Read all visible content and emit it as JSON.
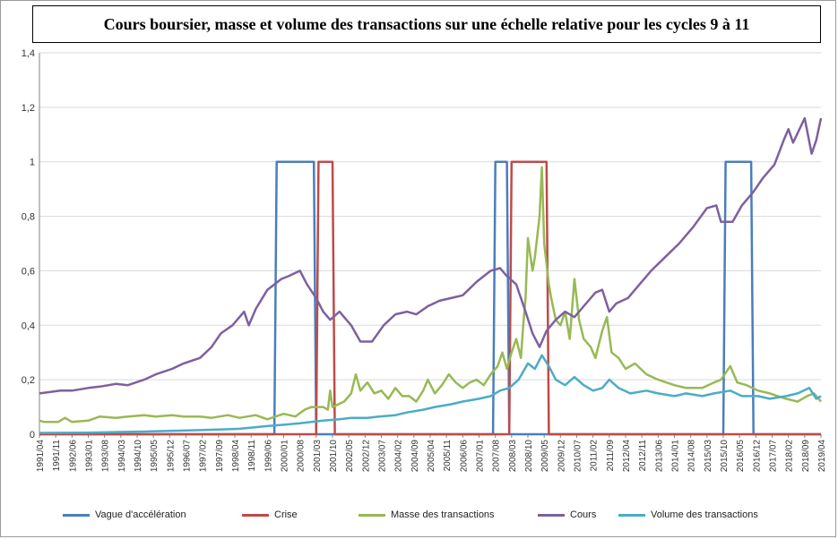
{
  "chart_data": {
    "type": "line",
    "title": "Cours boursier, masse et volume des transactions sur une échelle relative pour les cycles 9 à 11",
    "xlabel": "",
    "ylabel": "",
    "ylim": [
      0,
      1.4
    ],
    "yticks": [
      "0",
      "0,2",
      "0,4",
      "0,6",
      "0,8",
      "1",
      "1,2",
      "1,4"
    ],
    "x_start": "1991/04",
    "x_end": "2019/04",
    "x_tick_labels": [
      "1991/04",
      "1991/11",
      "1992/06",
      "1993/01",
      "1993/08",
      "1994/03",
      "1994/10",
      "1995/05",
      "1995/12",
      "1996/07",
      "1997/02",
      "1997/09",
      "1998/04",
      "1998/11",
      "1999/06",
      "2000/01",
      "2000/08",
      "2001/03",
      "2001/10",
      "2002/05",
      "2002/12",
      "2003/07",
      "2004/02",
      "2004/09",
      "2005/04",
      "2005/11",
      "2006/06",
      "2007/01",
      "2007/08",
      "2008/03",
      "2008/10",
      "2009/05",
      "2009/12",
      "2010/07",
      "2011/02",
      "2011/09",
      "2012/04",
      "2012/11",
      "2013/06",
      "2014/01",
      "2014/08",
      "2015/03",
      "2015/10",
      "2016/05",
      "2016/12",
      "2017/07",
      "2018/02",
      "2018/09",
      "2019/04"
    ],
    "legend_position": "bottom",
    "grid": "horizontal",
    "series": [
      {
        "name": "Vague d'accélération",
        "color": "#4a7ebb",
        "points": [
          [
            "1991/04",
            0
          ],
          [
            "1999/09",
            0
          ],
          [
            "1999/10",
            1
          ],
          [
            "2001/02",
            1
          ],
          [
            "2001/03",
            0
          ],
          [
            "2007/07",
            0
          ],
          [
            "2007/08",
            1
          ],
          [
            "2008/01",
            1
          ],
          [
            "2008/02",
            0
          ],
          [
            "2015/10",
            0
          ],
          [
            "2015/11",
            1
          ],
          [
            "2016/10",
            1
          ],
          [
            "2016/11",
            0
          ],
          [
            "2019/04",
            0
          ]
        ]
      },
      {
        "name": "Crise",
        "color": "#be4b48",
        "points": [
          [
            "1991/04",
            0
          ],
          [
            "2001/03",
            0
          ],
          [
            "2001/04",
            1
          ],
          [
            "2001/10",
            1
          ],
          [
            "2001/11",
            0
          ],
          [
            "2008/02",
            0
          ],
          [
            "2008/03",
            1
          ],
          [
            "2009/06",
            1
          ],
          [
            "2009/07",
            0
          ],
          [
            "2019/04",
            0
          ]
        ]
      },
      {
        "name": "Masse des transactions",
        "color": "#98b954",
        "points": [
          [
            "1991/04",
            0.05
          ],
          [
            "1991/06",
            0.045
          ],
          [
            "1991/12",
            0.045
          ],
          [
            "1992/03",
            0.06
          ],
          [
            "1992/06",
            0.045
          ],
          [
            "1993/01",
            0.05
          ],
          [
            "1993/06",
            0.065
          ],
          [
            "1994/01",
            0.06
          ],
          [
            "1994/06",
            0.065
          ],
          [
            "1995/01",
            0.07
          ],
          [
            "1995/06",
            0.065
          ],
          [
            "1996/01",
            0.07
          ],
          [
            "1996/06",
            0.065
          ],
          [
            "1997/01",
            0.065
          ],
          [
            "1997/06",
            0.06
          ],
          [
            "1998/01",
            0.07
          ],
          [
            "1998/06",
            0.06
          ],
          [
            "1999/01",
            0.07
          ],
          [
            "1999/06",
            0.055
          ],
          [
            "2000/01",
            0.075
          ],
          [
            "2000/06",
            0.065
          ],
          [
            "2000/10",
            0.09
          ],
          [
            "2001/01",
            0.1
          ],
          [
            "2001/06",
            0.1
          ],
          [
            "2001/08",
            0.09
          ],
          [
            "2001/09",
            0.16
          ],
          [
            "2001/10",
            0.1
          ],
          [
            "2002/03",
            0.12
          ],
          [
            "2002/06",
            0.15
          ],
          [
            "2002/08",
            0.22
          ],
          [
            "2002/10",
            0.16
          ],
          [
            "2003/01",
            0.19
          ],
          [
            "2003/04",
            0.15
          ],
          [
            "2003/07",
            0.16
          ],
          [
            "2003/10",
            0.13
          ],
          [
            "2004/01",
            0.17
          ],
          [
            "2004/04",
            0.14
          ],
          [
            "2004/07",
            0.14
          ],
          [
            "2004/10",
            0.12
          ],
          [
            "2005/01",
            0.16
          ],
          [
            "2005/03",
            0.2
          ],
          [
            "2005/06",
            0.15
          ],
          [
            "2005/09",
            0.18
          ],
          [
            "2005/12",
            0.22
          ],
          [
            "2006/03",
            0.19
          ],
          [
            "2006/06",
            0.17
          ],
          [
            "2006/09",
            0.19
          ],
          [
            "2006/12",
            0.2
          ],
          [
            "2007/03",
            0.18
          ],
          [
            "2007/06",
            0.22
          ],
          [
            "2007/09",
            0.25
          ],
          [
            "2007/11",
            0.3
          ],
          [
            "2008/01",
            0.24
          ],
          [
            "2008/03",
            0.3
          ],
          [
            "2008/05",
            0.35
          ],
          [
            "2008/07",
            0.28
          ],
          [
            "2008/08",
            0.4
          ],
          [
            "2008/09",
            0.5
          ],
          [
            "2008/10",
            0.72
          ],
          [
            "2008/12",
            0.6
          ],
          [
            "2009/01",
            0.65
          ],
          [
            "2009/03",
            0.8
          ],
          [
            "2009/04",
            0.98
          ],
          [
            "2009/05",
            0.7
          ],
          [
            "2009/07",
            0.55
          ],
          [
            "2009/08",
            0.5
          ],
          [
            "2009/10",
            0.42
          ],
          [
            "2009/12",
            0.4
          ],
          [
            "2010/02",
            0.45
          ],
          [
            "2010/04",
            0.35
          ],
          [
            "2010/06",
            0.57
          ],
          [
            "2010/08",
            0.42
          ],
          [
            "2010/10",
            0.35
          ],
          [
            "2011/01",
            0.32
          ],
          [
            "2011/03",
            0.28
          ],
          [
            "2011/06",
            0.38
          ],
          [
            "2011/08",
            0.43
          ],
          [
            "2011/10",
            0.3
          ],
          [
            "2012/01",
            0.28
          ],
          [
            "2012/04",
            0.24
          ],
          [
            "2012/08",
            0.26
          ],
          [
            "2013/01",
            0.22
          ],
          [
            "2013/06",
            0.2
          ],
          [
            "2014/01",
            0.18
          ],
          [
            "2014/06",
            0.17
          ],
          [
            "2015/01",
            0.17
          ],
          [
            "2015/06",
            0.19
          ],
          [
            "2015/09",
            0.2
          ],
          [
            "2016/01",
            0.25
          ],
          [
            "2016/04",
            0.19
          ],
          [
            "2016/08",
            0.18
          ],
          [
            "2017/01",
            0.16
          ],
          [
            "2017/06",
            0.15
          ],
          [
            "2018/01",
            0.13
          ],
          [
            "2018/06",
            0.12
          ],
          [
            "2018/10",
            0.14
          ],
          [
            "2019/01",
            0.15
          ],
          [
            "2019/04",
            0.12
          ]
        ]
      },
      {
        "name": "Cours",
        "color": "#7d60a0",
        "points": [
          [
            "1991/04",
            0.15
          ],
          [
            "1992/01",
            0.16
          ],
          [
            "1992/06",
            0.16
          ],
          [
            "1993/01",
            0.17
          ],
          [
            "1993/06",
            0.175
          ],
          [
            "1994/01",
            0.185
          ],
          [
            "1994/06",
            0.18
          ],
          [
            "1995/01",
            0.2
          ],
          [
            "1995/06",
            0.22
          ],
          [
            "1996/01",
            0.24
          ],
          [
            "1996/06",
            0.26
          ],
          [
            "1997/01",
            0.28
          ],
          [
            "1997/06",
            0.32
          ],
          [
            "1997/10",
            0.37
          ],
          [
            "1998/03",
            0.4
          ],
          [
            "1998/08",
            0.45
          ],
          [
            "1998/10",
            0.4
          ],
          [
            "1999/01",
            0.46
          ],
          [
            "1999/06",
            0.53
          ],
          [
            "1999/12",
            0.57
          ],
          [
            "2000/03",
            0.58
          ],
          [
            "2000/08",
            0.6
          ],
          [
            "2000/11",
            0.55
          ],
          [
            "2001/03",
            0.5
          ],
          [
            "2001/06",
            0.45
          ],
          [
            "2001/09",
            0.42
          ],
          [
            "2002/01",
            0.45
          ],
          [
            "2002/06",
            0.4
          ],
          [
            "2002/10",
            0.34
          ],
          [
            "2003/03",
            0.34
          ],
          [
            "2003/08",
            0.4
          ],
          [
            "2004/01",
            0.44
          ],
          [
            "2004/06",
            0.45
          ],
          [
            "2004/10",
            0.44
          ],
          [
            "2005/03",
            0.47
          ],
          [
            "2005/08",
            0.49
          ],
          [
            "2006/01",
            0.5
          ],
          [
            "2006/06",
            0.51
          ],
          [
            "2006/12",
            0.56
          ],
          [
            "2007/06",
            0.6
          ],
          [
            "2007/10",
            0.61
          ],
          [
            "2008/01",
            0.58
          ],
          [
            "2008/05",
            0.55
          ],
          [
            "2008/09",
            0.45
          ],
          [
            "2008/12",
            0.37
          ],
          [
            "2009/03",
            0.32
          ],
          [
            "2009/06",
            0.38
          ],
          [
            "2009/10",
            0.42
          ],
          [
            "2010/02",
            0.45
          ],
          [
            "2010/06",
            0.43
          ],
          [
            "2010/10",
            0.47
          ],
          [
            "2011/03",
            0.52
          ],
          [
            "2011/06",
            0.53
          ],
          [
            "2011/09",
            0.45
          ],
          [
            "2011/12",
            0.48
          ],
          [
            "2012/05",
            0.5
          ],
          [
            "2012/10",
            0.55
          ],
          [
            "2013/03",
            0.6
          ],
          [
            "2013/09",
            0.65
          ],
          [
            "2014/03",
            0.7
          ],
          [
            "2014/09",
            0.76
          ],
          [
            "2015/03",
            0.83
          ],
          [
            "2015/07",
            0.84
          ],
          [
            "2015/09",
            0.78
          ],
          [
            "2016/02",
            0.78
          ],
          [
            "2016/06",
            0.84
          ],
          [
            "2016/11",
            0.89
          ],
          [
            "2017/03",
            0.94
          ],
          [
            "2017/08",
            0.99
          ],
          [
            "2017/12",
            1.08
          ],
          [
            "2018/02",
            1.12
          ],
          [
            "2018/04",
            1.07
          ],
          [
            "2018/09",
            1.16
          ],
          [
            "2018/12",
            1.03
          ],
          [
            "2019/02",
            1.08
          ],
          [
            "2019/04",
            1.16
          ]
        ]
      },
      {
        "name": "Volume des transactions",
        "color": "#4bacc6",
        "points": [
          [
            "1991/04",
            0.005
          ],
          [
            "1993/01",
            0.006
          ],
          [
            "1995/01",
            0.01
          ],
          [
            "1997/01",
            0.015
          ],
          [
            "1998/06",
            0.02
          ],
          [
            "1999/06",
            0.03
          ],
          [
            "2000/01",
            0.035
          ],
          [
            "2000/08",
            0.04
          ],
          [
            "2001/01",
            0.045
          ],
          [
            "2001/06",
            0.05
          ],
          [
            "2002/01",
            0.055
          ],
          [
            "2002/06",
            0.06
          ],
          [
            "2003/01",
            0.06
          ],
          [
            "2003/06",
            0.065
          ],
          [
            "2004/01",
            0.07
          ],
          [
            "2004/06",
            0.08
          ],
          [
            "2005/01",
            0.09
          ],
          [
            "2005/06",
            0.1
          ],
          [
            "2006/01",
            0.11
          ],
          [
            "2006/06",
            0.12
          ],
          [
            "2007/01",
            0.13
          ],
          [
            "2007/06",
            0.14
          ],
          [
            "2007/10",
            0.16
          ],
          [
            "2008/02",
            0.17
          ],
          [
            "2008/06",
            0.2
          ],
          [
            "2008/10",
            0.26
          ],
          [
            "2009/01",
            0.24
          ],
          [
            "2009/04",
            0.29
          ],
          [
            "2009/07",
            0.25
          ],
          [
            "2009/10",
            0.2
          ],
          [
            "2010/02",
            0.18
          ],
          [
            "2010/06",
            0.21
          ],
          [
            "2010/10",
            0.18
          ],
          [
            "2011/02",
            0.16
          ],
          [
            "2011/06",
            0.17
          ],
          [
            "2011/09",
            0.2
          ],
          [
            "2012/01",
            0.17
          ],
          [
            "2012/06",
            0.15
          ],
          [
            "2013/01",
            0.16
          ],
          [
            "2013/06",
            0.15
          ],
          [
            "2014/01",
            0.14
          ],
          [
            "2014/06",
            0.15
          ],
          [
            "2015/01",
            0.14
          ],
          [
            "2015/06",
            0.15
          ],
          [
            "2016/01",
            0.16
          ],
          [
            "2016/06",
            0.14
          ],
          [
            "2017/01",
            0.14
          ],
          [
            "2017/06",
            0.13
          ],
          [
            "2018/01",
            0.14
          ],
          [
            "2018/06",
            0.15
          ],
          [
            "2018/11",
            0.17
          ],
          [
            "2019/02",
            0.13
          ],
          [
            "2019/04",
            0.14
          ]
        ]
      }
    ]
  }
}
